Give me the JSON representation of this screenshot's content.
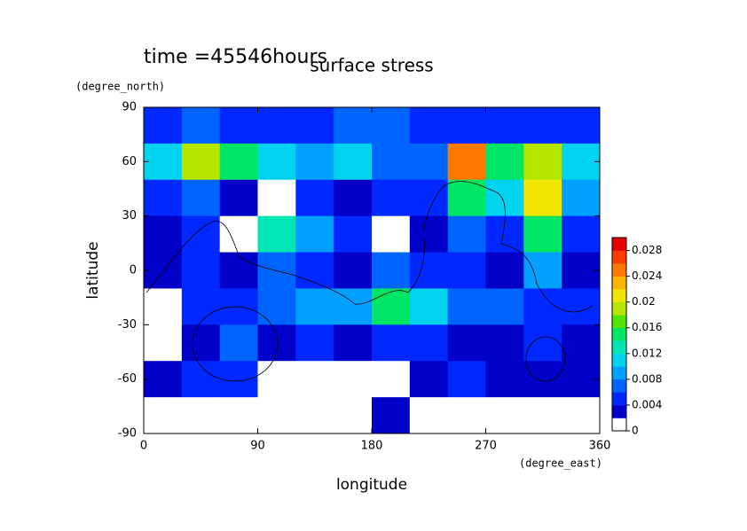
{
  "chart_data": {
    "type": "contour",
    "title": "surface stress",
    "annotation": "time =45546hours",
    "x_label": "longitude",
    "x_unit": "(degree_east)",
    "y_label": "latitude",
    "y_unit": "(degree_north)",
    "xlim": [
      0,
      360
    ],
    "ylim": [
      -90,
      90
    ],
    "xticks": [
      0,
      90,
      180,
      270,
      360
    ],
    "yticks": [
      -90,
      -60,
      -30,
      0,
      30,
      60,
      90
    ],
    "x": [
      15,
      45,
      75,
      105,
      135,
      165,
      195,
      225,
      255,
      285,
      315,
      345
    ],
    "y": [
      80,
      60,
      40,
      20,
      0,
      -20,
      -40,
      -60,
      -80
    ],
    "z": [
      [
        0.004,
        0.006,
        0.005,
        0.004,
        0.005,
        0.006,
        0.006,
        0.005,
        0.005,
        0.004,
        0.004,
        0.004
      ],
      [
        0.01,
        0.018,
        0.014,
        0.01,
        0.008,
        0.01,
        0.007,
        0.006,
        0.024,
        0.014,
        0.018,
        0.01
      ],
      [
        0.004,
        0.006,
        0.003,
        0,
        0.005,
        0.003,
        0.004,
        0.005,
        0.014,
        0.01,
        0.02,
        0.008
      ],
      [
        0.003,
        0.004,
        0,
        0.012,
        0.008,
        0.004,
        0,
        0.003,
        0.006,
        0.005,
        0.014,
        0.004
      ],
      [
        0.002,
        0.005,
        0.003,
        0.006,
        0.004,
        0.003,
        0.006,
        0.005,
        0.004,
        0.003,
        0.008,
        0.002
      ],
      [
        0,
        0.004,
        0.004,
        0.006,
        0.008,
        0.008,
        0.014,
        0.01,
        0.006,
        0.006,
        0.004,
        0.004
      ],
      [
        0,
        0.002,
        0.006,
        0.003,
        0.004,
        0.003,
        0.004,
        0.004,
        0.003,
        0.002,
        0.004,
        0.002
      ],
      [
        0.002,
        0.004,
        0.005,
        0,
        0,
        0,
        0,
        0.003,
        0.005,
        0.003,
        0.002,
        0.003
      ],
      [
        0,
        0,
        0,
        0,
        0,
        0,
        0.003,
        0,
        0,
        0,
        0,
        0
      ]
    ],
    "colorbar": {
      "lim": [
        0,
        0.03
      ],
      "ticks": [
        0,
        0.004,
        0.008,
        0.012,
        0.016,
        0.02,
        0.024,
        0.028
      ],
      "colors": [
        "#ffffff",
        "#0000c8",
        "#0028ff",
        "#0064ff",
        "#00a0ff",
        "#00d2f0",
        "#00e6b4",
        "#00e664",
        "#50e600",
        "#b4e600",
        "#f0e600",
        "#ffb400",
        "#ff7800",
        "#ff3c00",
        "#e60000"
      ]
    }
  }
}
